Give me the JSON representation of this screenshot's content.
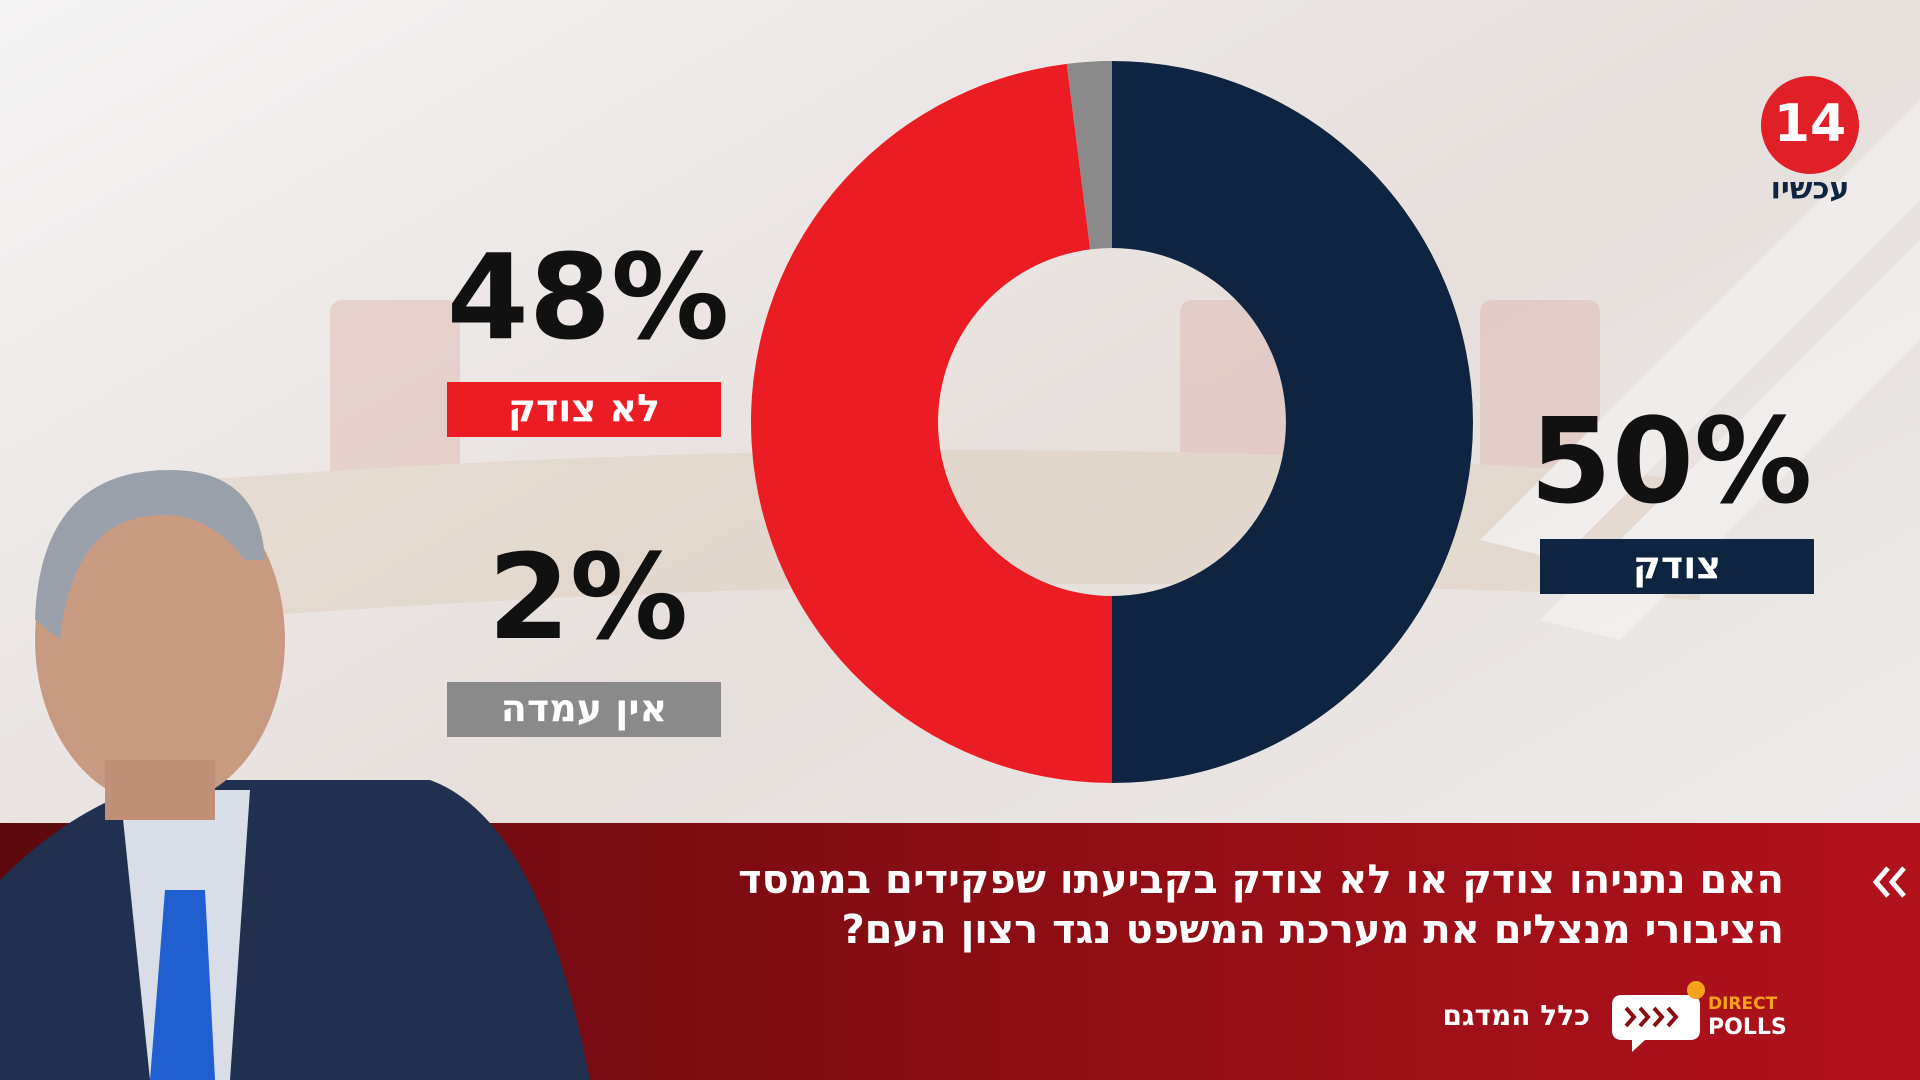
{
  "chart_data": {
    "type": "donut",
    "categories": [
      "צודק",
      "לא צודק",
      "אין עמדה"
    ],
    "values": [
      50,
      48,
      2
    ],
    "value_labels": [
      "50%",
      "48%",
      "2%"
    ],
    "colors": [
      "#0e2440",
      "#ec1c24",
      "#8a8a8a"
    ],
    "question": [
      "האם נתניהו צודק או לא צודק בקביעתו שפקידים בממסד",
      "הציבורי מנצלים את מערכת המשפט נגד רצון העם?"
    ],
    "sample": "כלל המדגם",
    "channel": {
      "number": "14",
      "name": "עכשיו"
    },
    "pollster": [
      "DIRECT",
      "POLLS"
    ]
  }
}
